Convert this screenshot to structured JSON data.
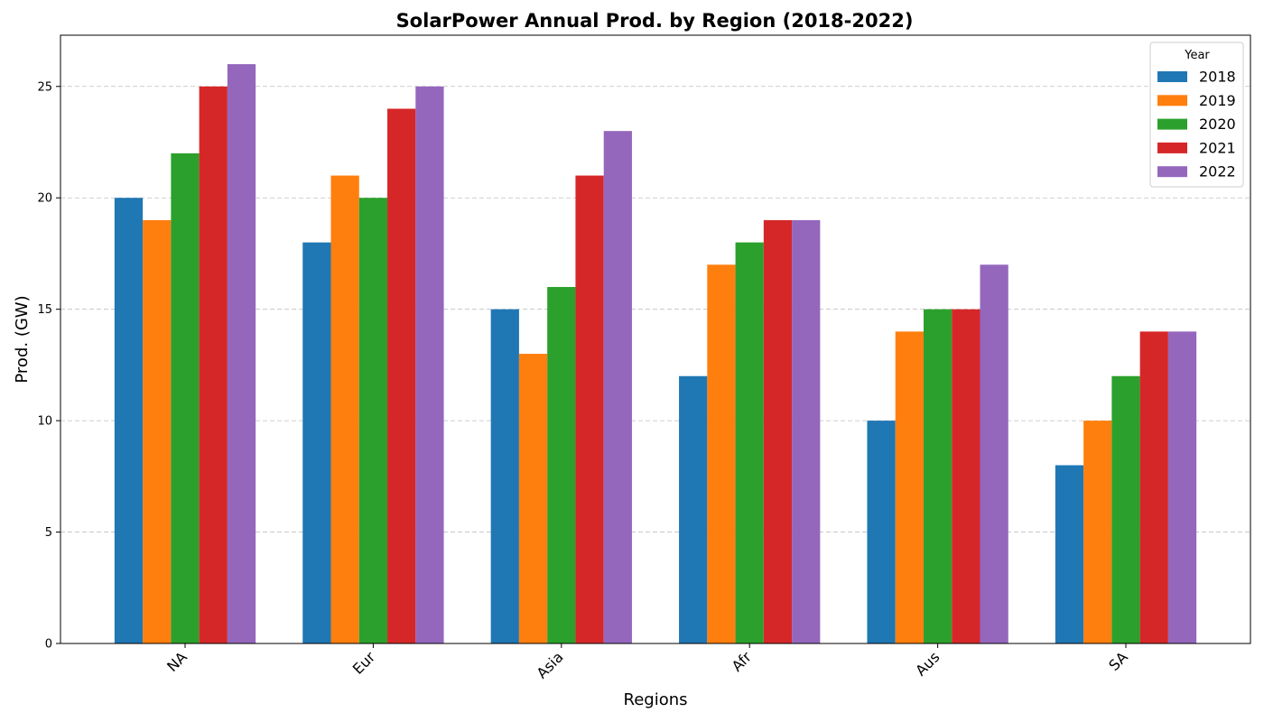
{
  "chart_data": {
    "type": "bar",
    "title": "SolarPower Annual Prod. by Region (2018-2022)",
    "xlabel": "Regions",
    "ylabel": "Prod. (GW)",
    "categories": [
      "NA",
      "Eur",
      "Asia",
      "Afr",
      "Aus",
      "SA"
    ],
    "series": [
      {
        "name": "2018",
        "color": "#1f77b4",
        "values": [
          20,
          18,
          15,
          12,
          10,
          8
        ]
      },
      {
        "name": "2019",
        "color": "#ff7f0e",
        "values": [
          19,
          21,
          13,
          17,
          14,
          10
        ]
      },
      {
        "name": "2020",
        "color": "#2ca02c",
        "values": [
          22,
          20,
          16,
          18,
          15,
          12
        ]
      },
      {
        "name": "2021",
        "color": "#d62728",
        "values": [
          25,
          24,
          21,
          19,
          15,
          14
        ]
      },
      {
        "name": "2022",
        "color": "#9467bd",
        "values": [
          26,
          25,
          23,
          19,
          17,
          14
        ]
      }
    ],
    "ylim": [
      0,
      27.3
    ],
    "yticks": [
      0,
      5,
      10,
      15,
      20,
      25
    ],
    "grid": "y-dashed",
    "legend": {
      "title": "Year",
      "placement": "top-right"
    }
  }
}
